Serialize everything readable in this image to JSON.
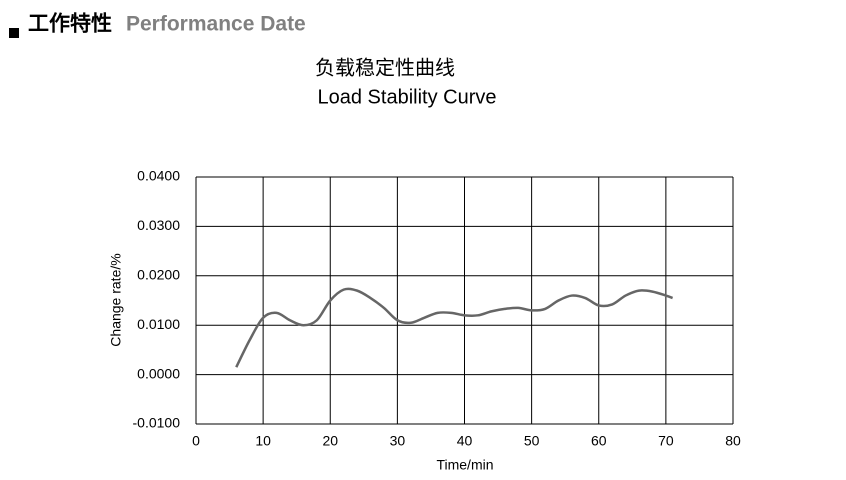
{
  "header": {
    "title_cn": "工作特性",
    "title_en": "Performance Date"
  },
  "chart_data": {
    "type": "line",
    "title": "负载稳定性曲线",
    "subtitle": "Load Stability Curve",
    "x_label": "Time/min",
    "y_label": "Change rate/%",
    "x": [
      6,
      8,
      10,
      12,
      14,
      16,
      18,
      20,
      22,
      24,
      26,
      28,
      30,
      32,
      34,
      36,
      38,
      40,
      42,
      44,
      46,
      48,
      50,
      52,
      54,
      56,
      58,
      60,
      62,
      64,
      66,
      68,
      70,
      71
    ],
    "series": [
      {
        "name": "Change rate",
        "color": "#666666",
        "values": [
          0.0015,
          0.007,
          0.0115,
          0.0125,
          0.011,
          0.01,
          0.011,
          0.015,
          0.0172,
          0.017,
          0.0155,
          0.0135,
          0.011,
          0.0105,
          0.0115,
          0.0125,
          0.0125,
          0.012,
          0.012,
          0.0128,
          0.0133,
          0.0135,
          0.013,
          0.0133,
          0.015,
          0.016,
          0.0155,
          0.014,
          0.0142,
          0.016,
          0.017,
          0.0168,
          0.016,
          0.0155
        ]
      }
    ],
    "xlim": [
      0,
      80
    ],
    "xticks": [
      0,
      10,
      20,
      30,
      40,
      50,
      60,
      70,
      80
    ],
    "ylim": [
      -0.01,
      0.04
    ],
    "yticks": [
      {
        "value": -0.01,
        "label": "-0.0100"
      },
      {
        "value": 0,
        "label": "0.0000"
      },
      {
        "value": 0.01,
        "label": "0.0100"
      },
      {
        "value": 0.02,
        "label": "0.0200"
      },
      {
        "value": 0.03,
        "label": "0.0300"
      },
      {
        "value": 0.04,
        "label": "0.0400"
      }
    ],
    "grid": true
  }
}
